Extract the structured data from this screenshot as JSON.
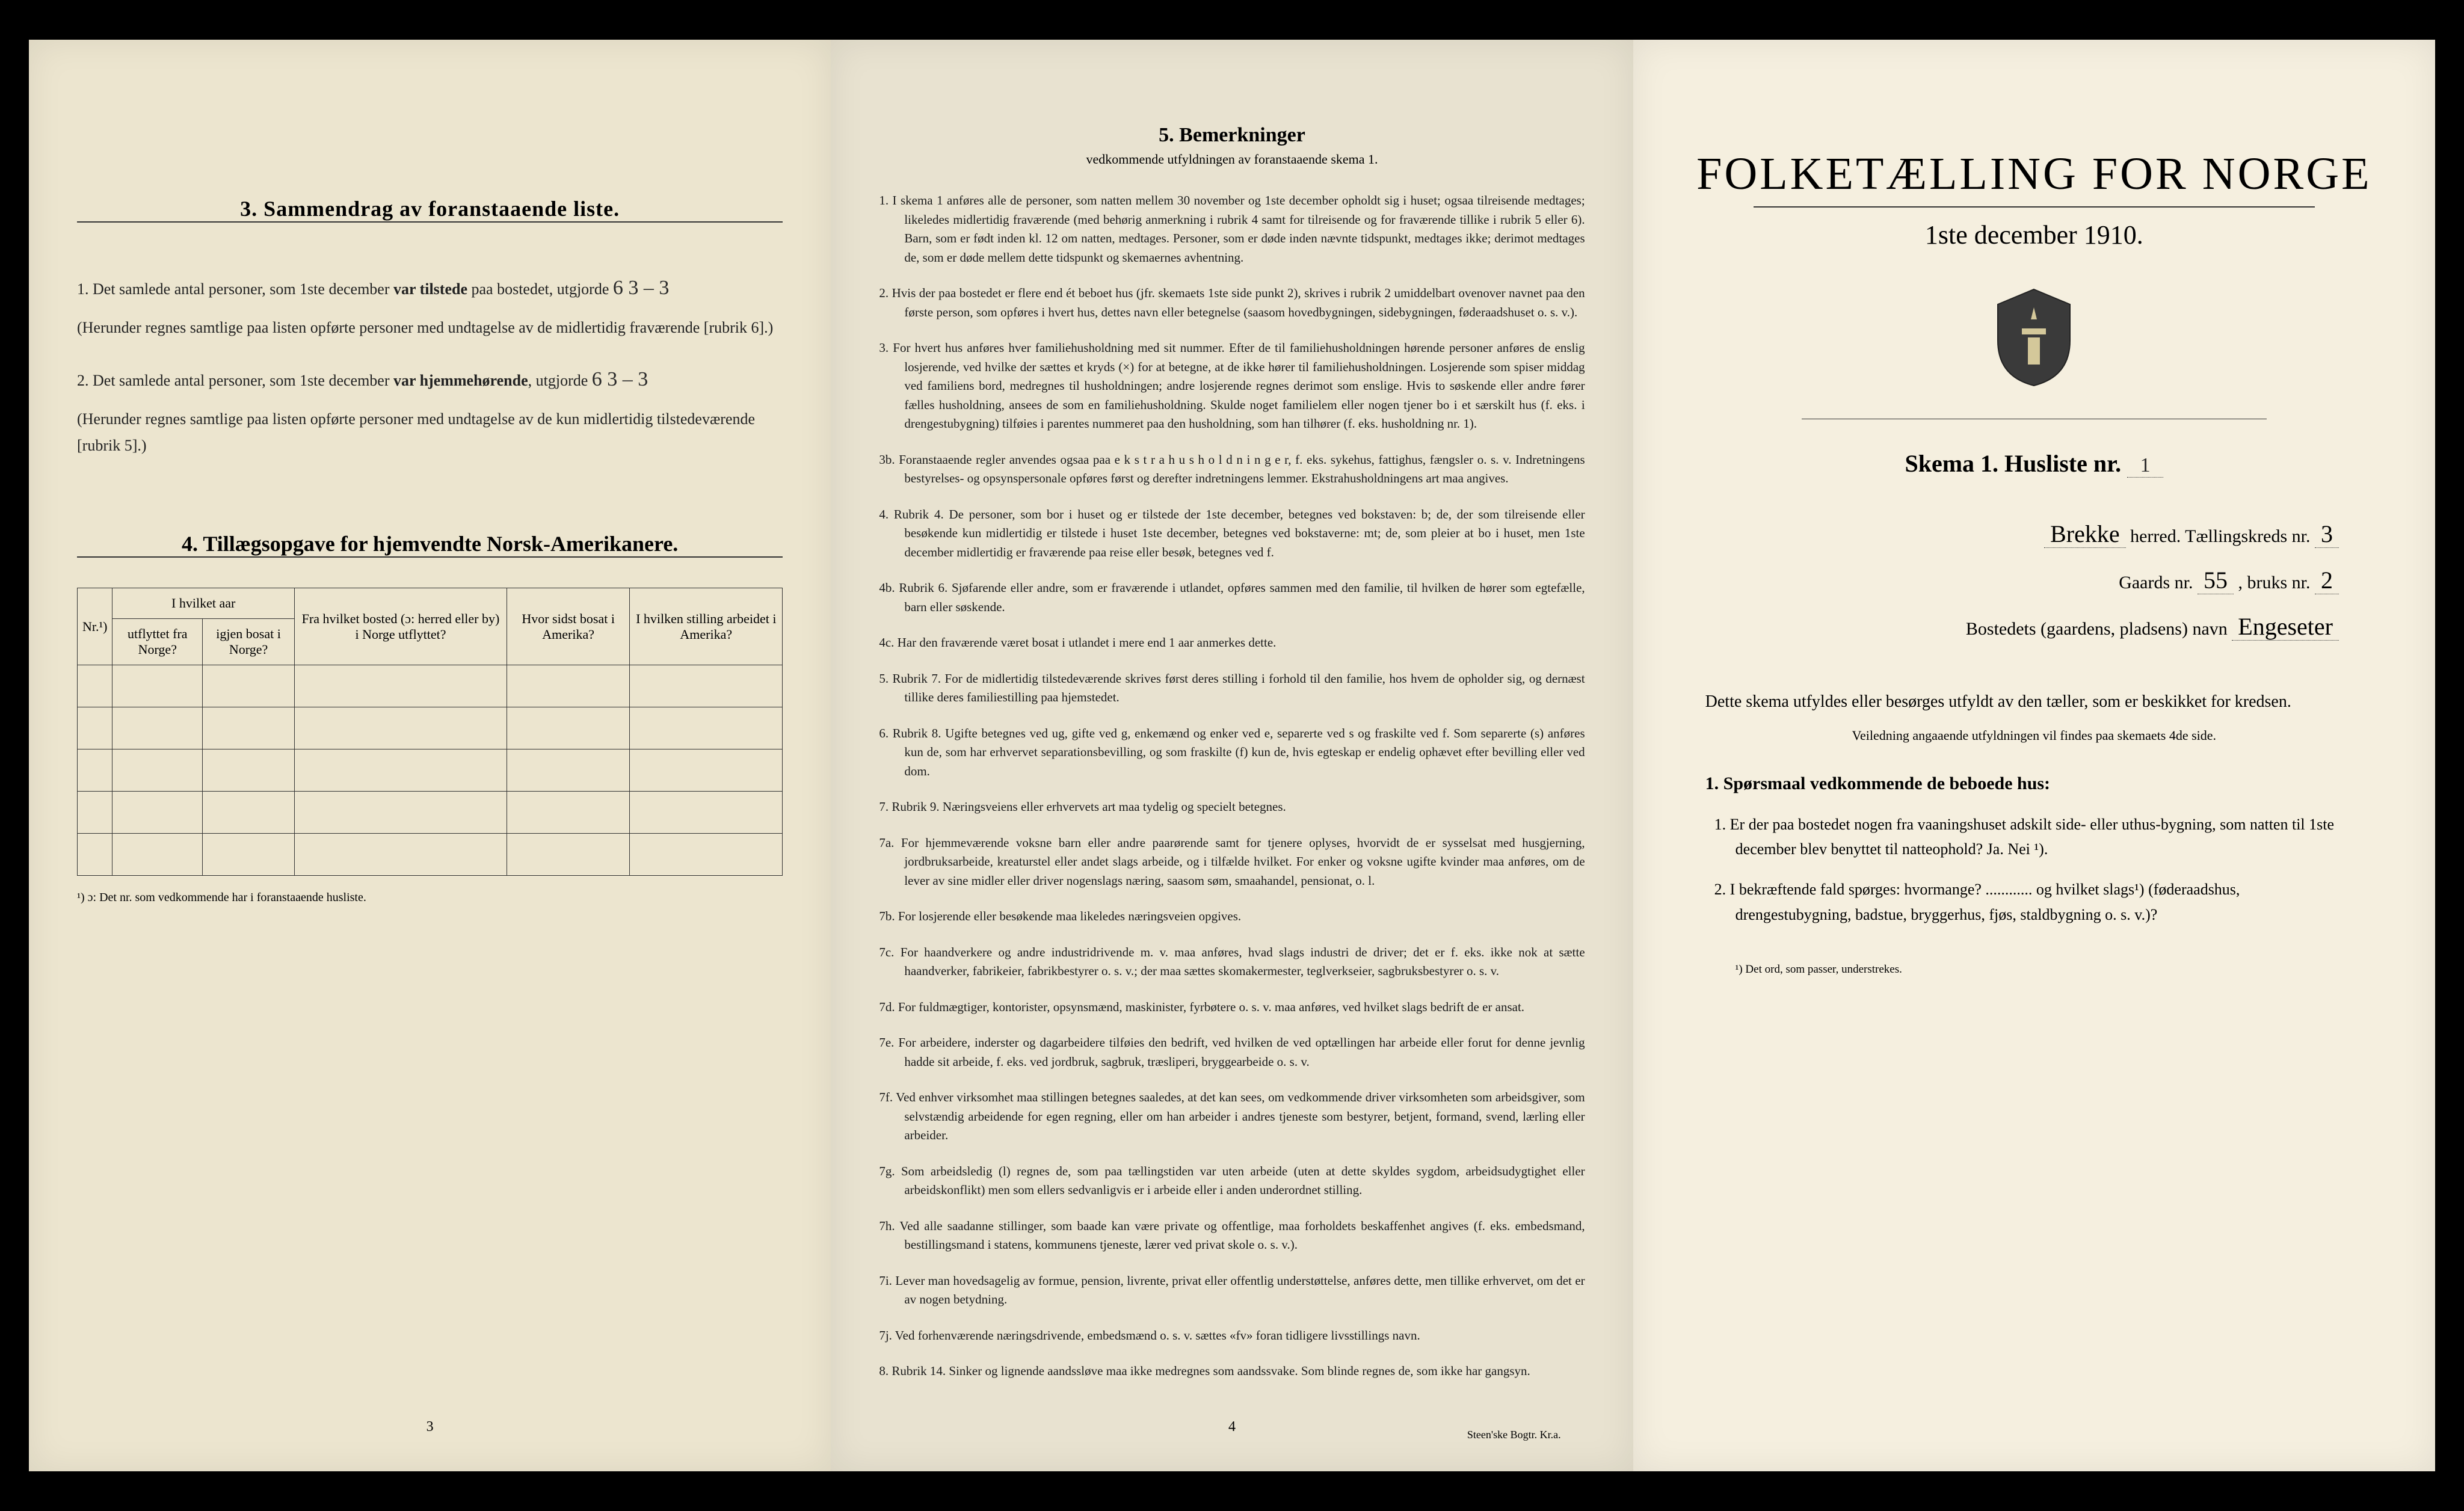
{
  "colors": {
    "paper1": "#ece5cf",
    "paper2": "#e8e2d0",
    "paper3": "#f5efdf",
    "ink": "#1a1a1a",
    "background": "#000000"
  },
  "page1": {
    "section3": {
      "title": "3.  Sammendrag av foranstaaende liste.",
      "item1_pre": "1.  Det samlede antal personer, som 1ste december ",
      "item1_bold": "var tilstede",
      "item1_post": " paa bostedet, utgjorde ",
      "item1_val": "6        3 – 3",
      "item1_note": "(Herunder regnes samtlige paa listen opførte personer med undtagelse av de midlertidig fraværende [rubrik 6].)",
      "item2_pre": "2.  Det samlede antal personer, som 1ste december ",
      "item2_bold": "var hjemmehørende",
      "item2_post": ", utgjorde ",
      "item2_val": "6        3 – 3",
      "item2_note": "(Herunder regnes samtlige paa listen opførte personer med undtagelse av de kun midlertidig tilstedeværende [rubrik 5].)"
    },
    "section4": {
      "title": "4.  Tillægsopgave for hjemvendte Norsk-Amerikanere.",
      "headers": {
        "nr": "Nr.¹)",
        "aar_group": "I hvilket aar",
        "utflyttet": "utflyttet fra Norge?",
        "igjen": "igjen bosat i Norge?",
        "fra": "Fra hvilket bosted (ɔ: herred eller by) i Norge utflyttet?",
        "hvor": "Hvor sidst bosat i Amerika?",
        "stilling": "I hvilken stilling arbeidet i Amerika?"
      },
      "blank_rows": 5,
      "footnote": "¹) ɔ: Det nr. som vedkommende har i foranstaaende husliste."
    },
    "page_number": "3"
  },
  "page2": {
    "title": "5.    Bemerkninger",
    "subtitle": "vedkommende utfyldningen av foranstaaende skema 1.",
    "items": [
      "1.  I skema 1 anføres alle de personer, som natten mellem 30 november og 1ste december opholdt sig i huset; ogsaa tilreisende medtages; likeledes midlertidig fraværende (med behørig anmerkning i rubrik 4 samt for tilreisende og for fraværende tillike i rubrik 5 eller 6). Barn, som er født inden kl. 12 om natten, medtages. Personer, som er døde inden nævnte tidspunkt, medtages ikke; derimot medtages de, som er døde mellem dette tidspunkt og skemaernes avhentning.",
      "2.  Hvis der paa bostedet er flere end ét beboet hus (jfr. skemaets 1ste side punkt 2), skrives i rubrik 2 umiddelbart ovenover navnet paa den første person, som opføres i hvert hus, dettes navn eller betegnelse (saasom hovedbygningen, sidebygningen, føderaadshuset o. s. v.).",
      "3.  For hvert hus anføres hver familiehusholdning med sit nummer. Efter de til familiehusholdningen hørende personer anføres de enslig losjerende, ved hvilke der sættes et kryds (×) for at betegne, at de ikke hører til familiehusholdningen. Losjerende som spiser middag ved familiens bord, medregnes til husholdningen; andre losjerende regnes derimot som enslige. Hvis to søskende eller andre fører fælles husholdning, ansees de som en familiehusholdning. Skulde noget familielem eller nogen tjener bo i et særskilt hus (f. eks. i drengestubygning) tilføies i parentes nummeret paa den husholdning, som han tilhører (f. eks. husholdning nr. 1).",
      "3b.     Foranstaaende regler anvendes ogsaa paa e k s t r a h u s h o l d n i n g e r, f. eks. sykehus, fattighus, fængsler o. s. v.  Indretningens bestyrelses- og opsynspersonale opføres først og derefter indretningens lemmer. Ekstrahusholdningens art maa angives.",
      "4.  Rubrik 4. De personer, som bor i huset og er tilstede der 1ste december, betegnes ved bokstaven: b; de, der som tilreisende eller besøkende kun midlertidig er tilstede i huset 1ste december, betegnes ved bokstaverne: mt; de, som pleier at bo i huset, men 1ste december midlertidig er fraværende paa reise eller besøk, betegnes ved f.",
      "4b.     Rubrik 6. Sjøfarende eller andre, som er fraværende i utlandet, opføres sammen med den familie, til hvilken de hører som egtefælle, barn eller søskende.",
      "4c.     Har den fraværende været bosat i utlandet i mere end 1 aar anmerkes dette.",
      "5.  Rubrik 7. For de midlertidig tilstedeværende skrives først deres stilling i forhold til den familie, hos hvem de opholder sig, og dernæst tillike deres familiestilling paa hjemstedet.",
      "6.  Rubrik 8. Ugifte betegnes ved ug, gifte ved g, enkemænd og enker ved e, separerte ved s og fraskilte ved f. Som separerte (s) anføres kun de, som har erhvervet separationsbevilling, og som fraskilte (f) kun de, hvis egteskap er endelig ophævet efter bevilling eller ved dom.",
      "7.  Rubrik 9. Næringsveiens eller erhvervets art maa tydelig og specielt betegnes.",
      "7a.     For hjemmeværende voksne barn eller andre paarørende samt for tjenere oplyses, hvorvidt de er sysselsat med husgjerning, jordbruksarbeide, kreaturstel eller andet slags arbeide, og i tilfælde hvilket. For enker og voksne ugifte kvinder maa anføres, om de lever av sine midler eller driver nogenslags næring, saasom søm, smaahandel, pensionat, o. l.",
      "7b.     For losjerende eller besøkende maa likeledes næringsveien opgives.",
      "7c.     For haandverkere og andre industridrivende m. v. maa anføres, hvad slags industri de driver; det er f. eks. ikke nok at sætte haandverker, fabrikeier, fabrikbestyrer o. s. v.; der maa sættes skomakermester, teglverkseier, sagbruksbestyrer o. s. v.",
      "7d.     For fuldmægtiger, kontorister, opsynsmænd, maskinister, fyrbøtere o. s. v. maa anføres, ved hvilket slags bedrift de er ansat.",
      "7e.     For arbeidere, inderster og dagarbeidere tilføies den bedrift, ved hvilken de ved optællingen har arbeide eller forut for denne jevnlig hadde sit arbeide, f. eks. ved jordbruk, sagbruk, træsliperi, bryggearbeide o. s. v.",
      "7f.     Ved enhver virksomhet maa stillingen betegnes saaledes, at det kan sees, om vedkommende driver virksomheten som arbeidsgiver, som selvstændig arbeidende for egen regning, eller om han arbeider i andres tjeneste som bestyrer, betjent, formand, svend, lærling eller arbeider.",
      "7g.     Som arbeidsledig (l) regnes de, som paa tællingstiden var uten arbeide (uten at dette skyldes sygdom, arbeidsudygtighet eller arbeidskonflikt) men som ellers sedvanligvis er i arbeide eller i anden underordnet stilling.",
      "7h.     Ved alle saadanne stillinger, som baade kan være private og offentlige, maa forholdets beskaffenhet angives (f. eks. embedsmand, bestillingsmand i statens, kommunens tjeneste, lærer ved privat skole o. s. v.).",
      "7i.     Lever man hovedsagelig av formue, pension, livrente, privat eller offentlig understøttelse, anføres dette, men tillike erhvervet, om det er av nogen betydning.",
      "7j.     Ved forhenværende næringsdrivende, embedsmænd o. s. v. sættes «fv» foran tidligere livsstillings navn.",
      "8.  Rubrik 14. Sinker og lignende aandssløve maa ikke medregnes som aandssvake. Som blinde regnes de, som ikke har gangsyn."
    ],
    "page_number": "4",
    "printer": "Steen'ske Bogtr.  Kr.a."
  },
  "page3": {
    "title": "FOLKETÆLLING FOR NORGE",
    "date": "1ste december 1910.",
    "skema_label": "Skema 1.   Husliste nr.",
    "skema_val": "1",
    "herred_val": "Brekke",
    "herred_label": "herred.    Tællingskreds nr.",
    "kreds_val": "3",
    "gaards_label": "Gaards nr.",
    "gaards_val": "55",
    "bruks_label": ", bruks nr.",
    "bruks_val": "2",
    "bosted_label": "Bostedets (gaardens, pladsens) navn",
    "bosted_val": "Engeseter",
    "intro": "Dette skema utfyldes eller besørges utfyldt av den tæller, som er beskikket for kredsen.",
    "intro_sub": "Veiledning angaaende utfyldningen vil findes paa skemaets 4de side.",
    "q_header": "1. Spørsmaal vedkommende de beboede hus:",
    "q1": "1.  Er der paa bostedet nogen fra vaaningshuset adskilt side- eller uthus-bygning, som natten til 1ste december blev benyttet til natteophold?   Ja.   Nei ¹).",
    "q2": "2.  I bekræftende fald spørges: hvormange? ............ og hvilket slags¹) (føderaadshus, drengestubygning, badstue, bryggerhus, fjøs, staldbygning o. s. v.)?",
    "footnote": "¹) Det ord, som passer, understrekes."
  }
}
